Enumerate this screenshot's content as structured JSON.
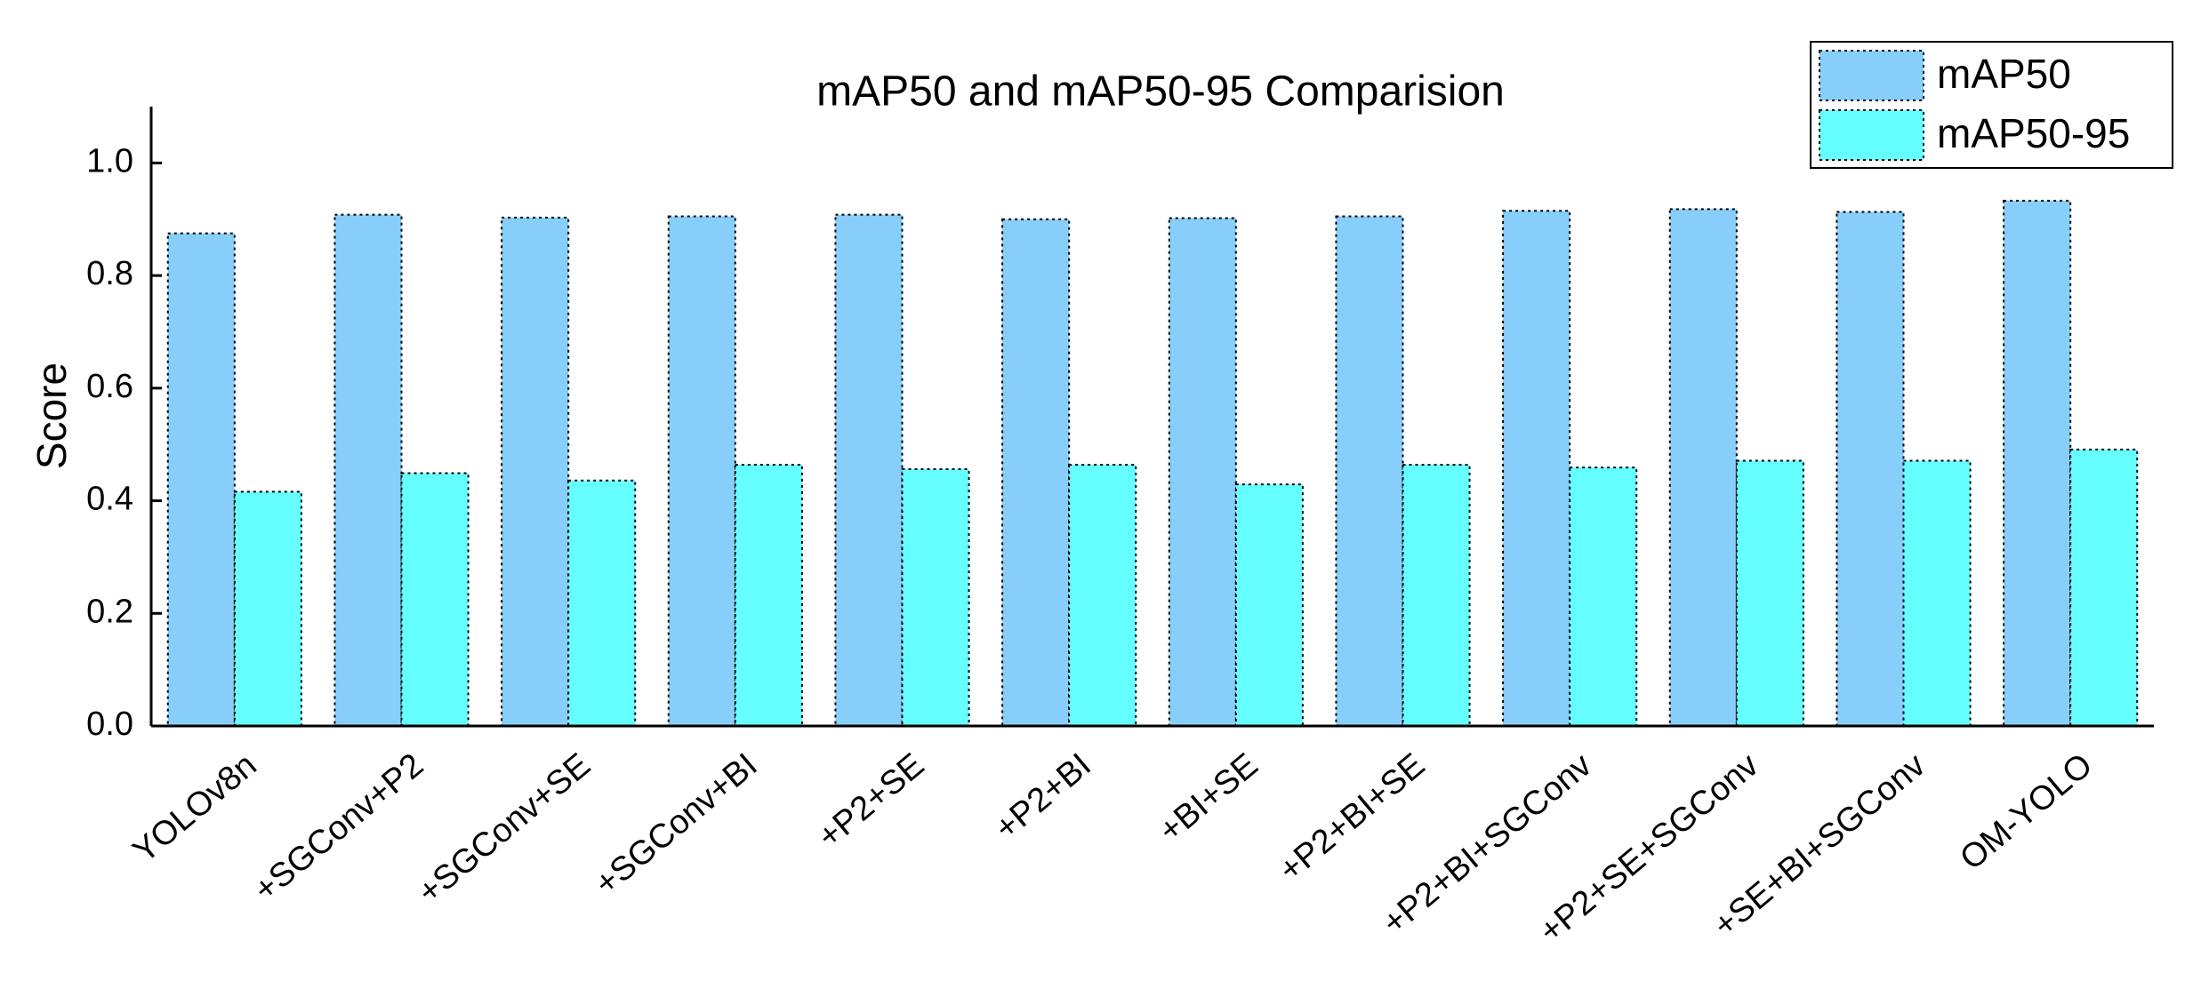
{
  "chart_data": {
    "type": "bar",
    "title": "mAP50 and mAP50-95 Comparision",
    "y_label": "Score",
    "categories": [
      "YOLOv8n",
      "+SGConv+P2",
      "+SGConv+SE",
      "+SGConv+BI",
      "+P2+SE",
      "+P2+BI",
      "+BI+SE",
      "+P2+BI+SE",
      "+P2+BI+SGConv",
      "+P2+SE+SGConv",
      "+SE+BI+SGConv",
      "OM-YOLO"
    ],
    "series": [
      {
        "name": "mAP50",
        "color": "#87cefa",
        "values": [
          0.875,
          0.908,
          0.903,
          0.905,
          0.908,
          0.9,
          0.902,
          0.905,
          0.915,
          0.918,
          0.913,
          0.933
        ]
      },
      {
        "name": "mAP50-95",
        "color": "#66ffff",
        "values": [
          0.416,
          0.449,
          0.436,
          0.464,
          0.456,
          0.464,
          0.429,
          0.464,
          0.459,
          0.471,
          0.471,
          0.491
        ]
      }
    ],
    "ylim": [
      0,
      1.1
    ],
    "yticks": [
      {
        "value": 0,
        "label": "0.0"
      },
      0.2,
      0.4,
      0.6,
      0.8,
      {
        "value": 1,
        "label": "1.0"
      }
    ],
    "legend": "upper right"
  }
}
